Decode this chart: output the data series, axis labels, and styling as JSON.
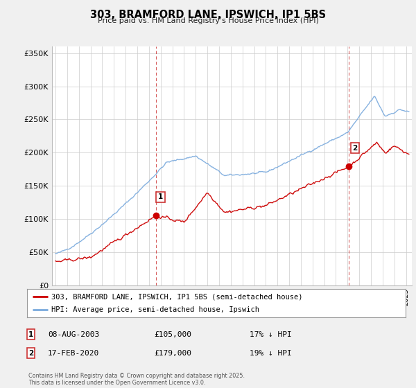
{
  "title": "303, BRAMFORD LANE, IPSWICH, IP1 5BS",
  "subtitle": "Price paid vs. HM Land Registry's House Price Index (HPI)",
  "ylabel_ticks": [
    "£0",
    "£50K",
    "£100K",
    "£150K",
    "£200K",
    "£250K",
    "£300K",
    "£350K"
  ],
  "ytick_values": [
    0,
    50000,
    100000,
    150000,
    200000,
    250000,
    300000,
    350000
  ],
  "ylim": [
    0,
    360000
  ],
  "xlim_start": 1994.7,
  "xlim_end": 2025.5,
  "legend_line1": "303, BRAMFORD LANE, IPSWICH, IP1 5BS (semi-detached house)",
  "legend_line2": "HPI: Average price, semi-detached house, Ipswich",
  "marker1_date": "08-AUG-2003",
  "marker1_price": "£105,000",
  "marker1_hpi": "17% ↓ HPI",
  "marker1_x": 2003.6,
  "marker1_y": 105000,
  "marker2_date": "17-FEB-2020",
  "marker2_price": "£179,000",
  "marker2_hpi": "19% ↓ HPI",
  "marker2_x": 2020.12,
  "marker2_y": 179000,
  "red_color": "#cc0000",
  "blue_color": "#7aaadd",
  "vline_color": "#cc3333",
  "background_color": "#f0f0f0",
  "plot_bg_color": "#ffffff",
  "footer_text": "Contains HM Land Registry data © Crown copyright and database right 2025.\nThis data is licensed under the Open Government Licence v3.0."
}
